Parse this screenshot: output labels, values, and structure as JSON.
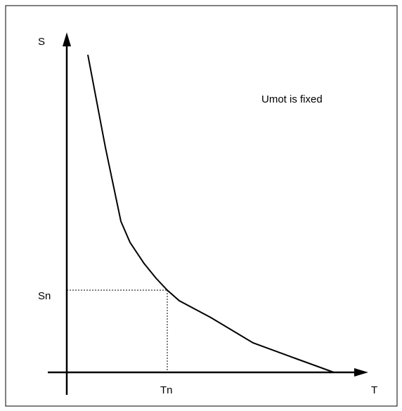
{
  "axes": {
    "y_label": "S",
    "x_label": "T"
  },
  "markers": {
    "y_label": "Sn",
    "x_label": "Tn"
  },
  "annotation": "Umot is fixed"
}
